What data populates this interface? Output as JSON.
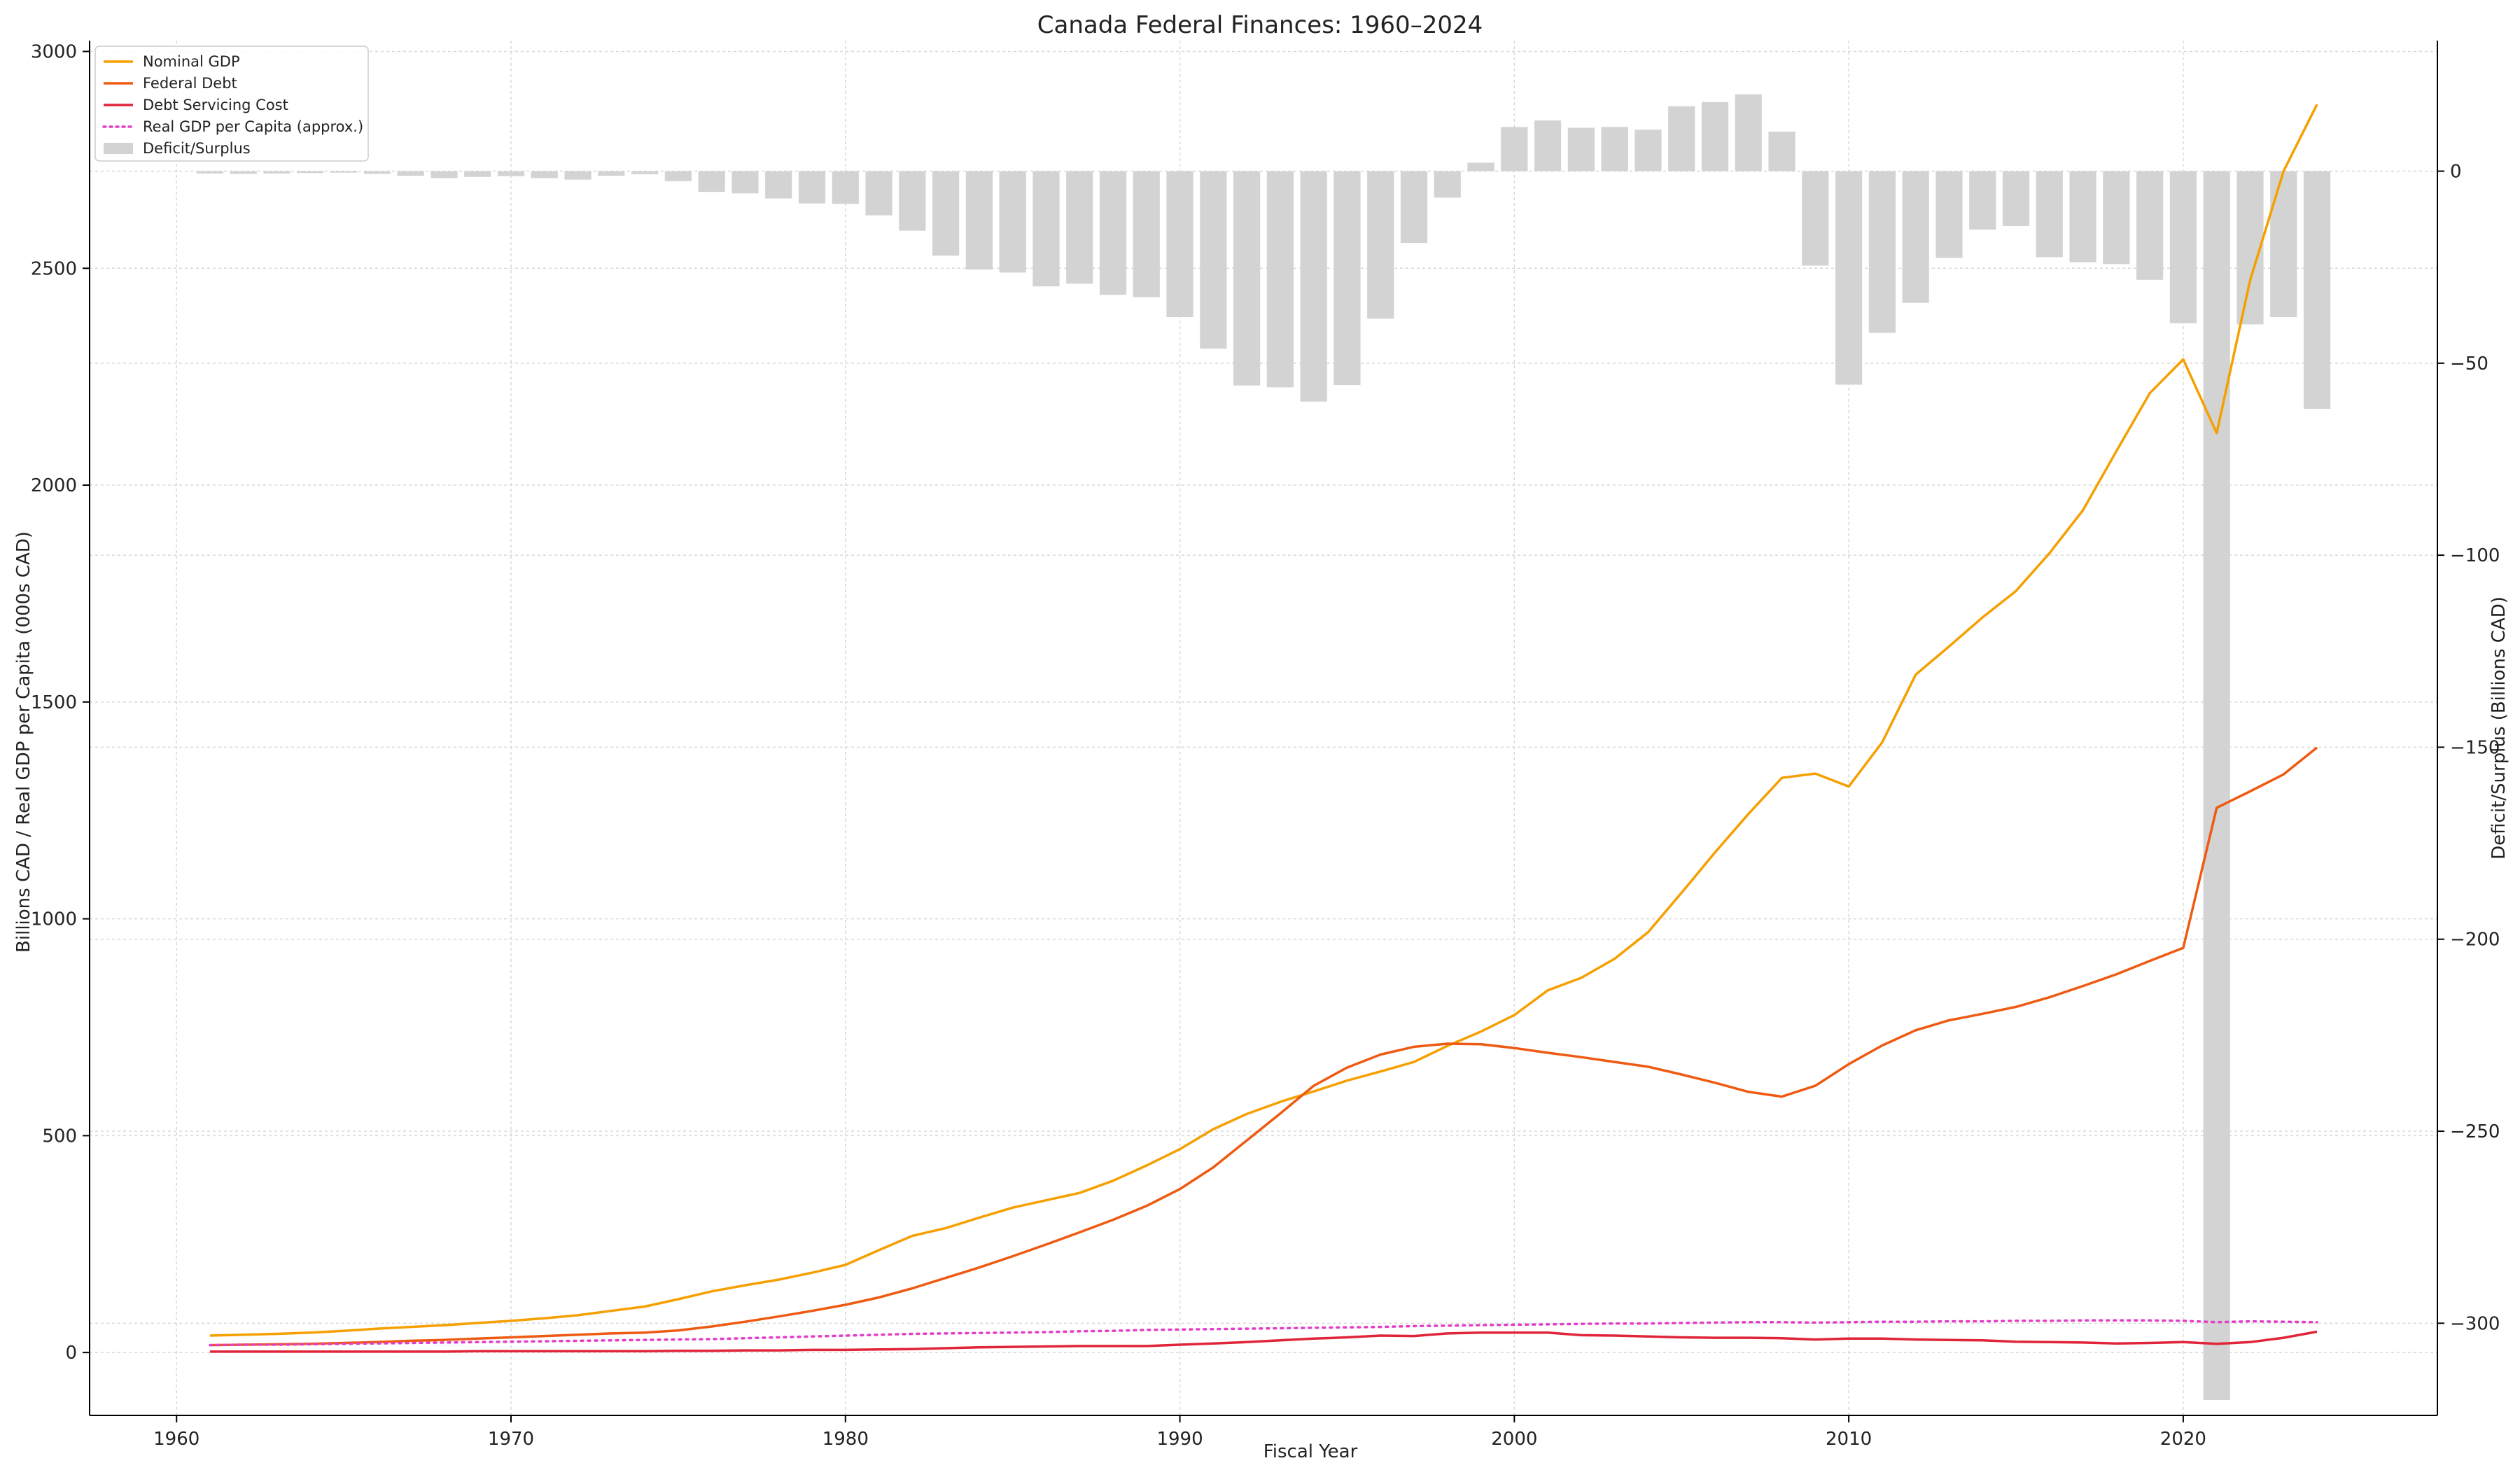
{
  "chart_data": {
    "type": "line",
    "title": "Canada Federal Finances: 1960–2024",
    "xlabel": "Fiscal Year",
    "ylabel": "Billions CAD / Real GDP per Capita (000s CAD)",
    "y2label": "Deficit/Surplus (Billions CAD)",
    "xlim": [
      1957.4,
      2027.6
    ],
    "ylim": [
      -145,
      3025
    ],
    "y2lim": [
      -324,
      34
    ],
    "xticks": [
      1960,
      1970,
      1980,
      1990,
      2000,
      2010,
      2020
    ],
    "yticks": [
      0,
      500,
      1000,
      1500,
      2000,
      2500,
      3000
    ],
    "y2ticks": [
      0,
      -50,
      -100,
      -150,
      -200,
      -250,
      -300
    ],
    "grid": true,
    "legend_position": "top-left",
    "x": [
      1961,
      1962,
      1963,
      1964,
      1965,
      1966,
      1967,
      1968,
      1969,
      1970,
      1971,
      1972,
      1973,
      1974,
      1975,
      1976,
      1977,
      1978,
      1979,
      1980,
      1981,
      1982,
      1983,
      1984,
      1985,
      1986,
      1987,
      1988,
      1989,
      1990,
      1991,
      1992,
      1993,
      1994,
      1995,
      1996,
      1997,
      1998,
      1999,
      2000,
      2001,
      2002,
      2003,
      2004,
      2005,
      2006,
      2007,
      2008,
      2009,
      2010,
      2011,
      2012,
      2013,
      2014,
      2015,
      2016,
      2017,
      2018,
      2019,
      2020,
      2021,
      2022,
      2023,
      2024
    ],
    "series": [
      {
        "name": "Nominal GDP",
        "axis": "left",
        "style": "solid",
        "color": "#F5A000",
        "values": [
          39,
          41,
          43,
          46,
          50,
          55,
          59,
          63,
          68,
          73,
          79,
          86,
          96,
          106,
          123,
          141,
          155,
          168,
          184,
          202,
          236,
          269,
          287,
          311,
          334,
          351,
          368,
          396,
          431,
          469,
          515,
          550,
          578,
          602,
          627,
          648,
          670,
          707,
          740,
          778,
          835,
          864,
          908,
          969,
          1060,
          1153,
          1242,
          1325,
          1335,
          1305,
          1407,
          1563,
          1628,
          1695,
          1756,
          1843,
          1942,
          2078,
          2212,
          2290,
          2120,
          2472,
          2724,
          2878
        ]
      },
      {
        "name": "Federal Debt",
        "axis": "left",
        "style": "solid",
        "color": "#EE5A12",
        "values": [
          17,
          18,
          19,
          20,
          22,
          24,
          27,
          29,
          32,
          35,
          38,
          41,
          44,
          46,
          51,
          60,
          71,
          83,
          96,
          110,
          127,
          148,
          172,
          196,
          222,
          249,
          277,
          306,
          338,
          377,
          427,
          489,
          551,
          615,
          657,
          687,
          705,
          712,
          711,
          702,
          691,
          681,
          670,
          659,
          641,
          622,
          601,
          590,
          615,
          665,
          708,
          743,
          766,
          781,
          797,
          819,
          845,
          872,
          903,
          933,
          1256,
          1294,
          1333,
          1395
        ]
      },
      {
        "name": "Debt Servicing Cost",
        "axis": "left",
        "style": "solid",
        "color": "#E0253A",
        "values": [
          2,
          2,
          2,
          2,
          2,
          2,
          2,
          2,
          3,
          3,
          3,
          3,
          3,
          3,
          4,
          4,
          5,
          5,
          6,
          6,
          7,
          8,
          10,
          12,
          13,
          14,
          15,
          15,
          15,
          18,
          21,
          24,
          28,
          32,
          35,
          39,
          38,
          44,
          46,
          46,
          46,
          40,
          39,
          37,
          35,
          34,
          34,
          33,
          30,
          32,
          32,
          30,
          29,
          28,
          25,
          24,
          23,
          21,
          22,
          24,
          20,
          24,
          34,
          48
        ]
      },
      {
        "name": "Real GDP per Capita (approx.)",
        "axis": "left",
        "style": "dotted",
        "color": "#E040C8",
        "values": [
          17,
          18,
          18,
          19,
          20,
          21,
          22,
          23,
          24,
          25,
          26,
          27,
          28,
          29,
          30,
          31,
          33,
          35,
          37,
          39,
          41,
          43,
          44,
          45,
          46,
          47,
          49,
          50,
          52,
          53,
          54,
          55,
          56,
          57,
          58,
          59,
          61,
          62,
          63,
          64,
          65,
          66,
          67,
          67,
          68,
          69,
          70,
          70,
          69,
          70,
          71,
          71,
          72,
          72,
          73,
          73,
          74,
          74,
          74,
          73,
          70,
          72,
          71,
          70
        ]
      },
      {
        "name": "Deficit/Surplus",
        "axis": "right",
        "type": "bar",
        "color": "#D3D3D3",
        "values": [
          -0.6,
          -0.7,
          -0.6,
          -0.5,
          -0.4,
          -0.7,
          -1.2,
          -1.8,
          -1.5,
          -1.3,
          -1.8,
          -2.2,
          -1.2,
          -0.8,
          -2.6,
          -5.4,
          -5.8,
          -7.1,
          -8.4,
          -8.5,
          -11.5,
          -15.5,
          -22,
          -25.6,
          -26.4,
          -30,
          -29.3,
          -32.2,
          -32.8,
          -38,
          -46.2,
          -55.8,
          -56.3,
          -60,
          -55.7,
          -38.4,
          -18.7,
          -6.9,
          2.2,
          11.5,
          13.2,
          11.3,
          11.5,
          10.8,
          16.9,
          18,
          20,
          10.3,
          -24.6,
          -55.6,
          -42.1,
          -34.3,
          -22.6,
          -15.2,
          -14.3,
          -22.4,
          -23.7,
          -24.2,
          -28.3,
          -39.6,
          -320,
          -39.9,
          -38,
          -61.9
        ]
      }
    ]
  }
}
